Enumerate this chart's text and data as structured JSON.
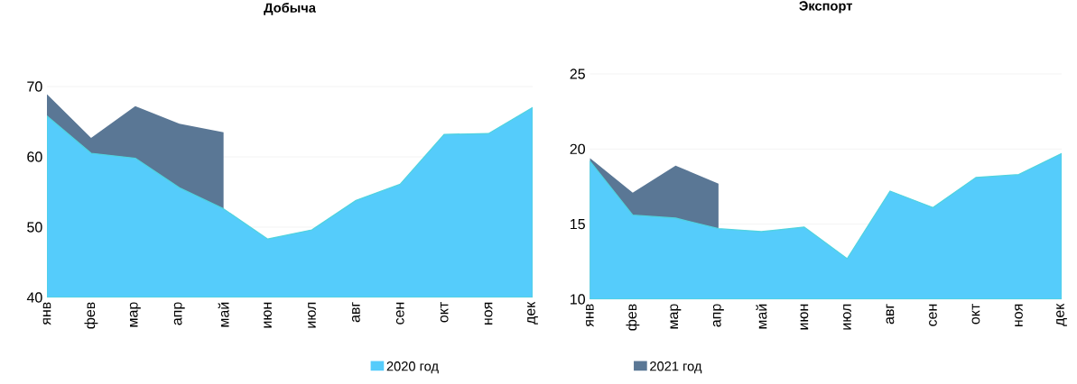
{
  "chart_data": [
    {
      "type": "area",
      "title": "Добыча",
      "categories": [
        "янв",
        "фев",
        "мар",
        "апр",
        "май",
        "июн",
        "июл",
        "авг",
        "сен",
        "окт",
        "ноя",
        "дек"
      ],
      "series": [
        {
          "name": "2020 год",
          "color": "#55ccfb",
          "values": [
            65.8,
            60.5,
            59.8,
            55.6,
            52.6,
            48.3,
            49.6,
            53.8,
            56.1,
            63.2,
            63.3,
            67.0
          ]
        },
        {
          "name": "2021 год",
          "color": "#5a7795",
          "values": [
            68.9,
            62.7,
            67.2,
            64.7,
            63.5,
            null,
            null,
            null,
            null,
            null,
            null,
            null
          ]
        }
      ],
      "ylim": [
        40,
        70
      ],
      "yticks": [
        40,
        50,
        60,
        70
      ],
      "grid": "y",
      "legend": "bottom"
    },
    {
      "type": "area",
      "title": "Экспорт",
      "categories": [
        "янв",
        "фев",
        "мар",
        "апр",
        "май",
        "июн",
        "июл",
        "авг",
        "сен",
        "окт",
        "ноя",
        "дек"
      ],
      "series": [
        {
          "color": "#55ccfb",
          "values": [
            19.2,
            15.6,
            15.4,
            14.7,
            14.5,
            14.8,
            12.7,
            17.2,
            16.1,
            18.1,
            18.3,
            19.7
          ]
        },
        {
          "color": "#5a7795",
          "values": [
            19.4,
            17.1,
            18.9,
            17.7,
            null,
            null,
            null,
            null,
            null,
            null,
            null,
            null
          ]
        }
      ],
      "ylim": [
        10,
        25
      ],
      "yticks": [
        10,
        15,
        20,
        25
      ],
      "grid": "y"
    }
  ]
}
